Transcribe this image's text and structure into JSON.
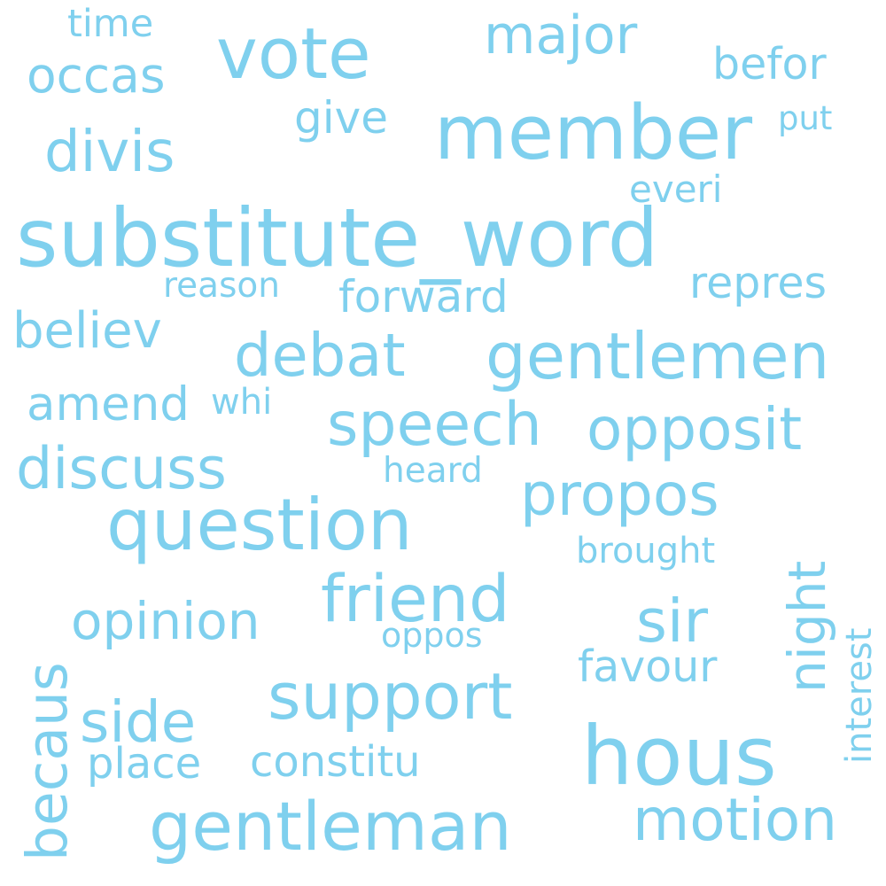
{
  "word_color": "#7fd0ee",
  "background_color": "#ffffff",
  "words": [
    {
      "id": "substitute-word",
      "text": "substitute_word"
    },
    {
      "id": "member",
      "text": "member"
    },
    {
      "id": "hous",
      "text": "hous"
    },
    {
      "id": "question",
      "text": "question"
    },
    {
      "id": "gentleman",
      "text": "gentleman"
    },
    {
      "id": "vote",
      "text": "vote"
    },
    {
      "id": "gentlemen",
      "text": "gentlemen"
    },
    {
      "id": "support",
      "text": "support"
    },
    {
      "id": "friend",
      "text": "friend"
    },
    {
      "id": "opposit",
      "text": "opposit"
    },
    {
      "id": "motion",
      "text": "motion"
    },
    {
      "id": "debat",
      "text": "debat"
    },
    {
      "id": "propos",
      "text": "propos"
    },
    {
      "id": "becaus",
      "text": "becaus"
    },
    {
      "id": "speech",
      "text": "speech"
    },
    {
      "id": "discuss",
      "text": "discuss"
    },
    {
      "id": "divis",
      "text": "divis"
    },
    {
      "id": "sir",
      "text": "sir"
    },
    {
      "id": "major",
      "text": "major"
    },
    {
      "id": "side",
      "text": "side"
    },
    {
      "id": "night",
      "text": "night"
    },
    {
      "id": "opinion",
      "text": "opinion"
    },
    {
      "id": "occas",
      "text": "occas"
    },
    {
      "id": "believ",
      "text": "believ"
    },
    {
      "id": "amend",
      "text": "amend"
    },
    {
      "id": "forward",
      "text": "forward"
    },
    {
      "id": "befor",
      "text": "befor"
    },
    {
      "id": "give",
      "text": "give"
    },
    {
      "id": "repres",
      "text": "repres"
    },
    {
      "id": "favour",
      "text": "favour"
    },
    {
      "id": "place",
      "text": "place"
    },
    {
      "id": "constitu",
      "text": "constitu"
    },
    {
      "id": "everi",
      "text": "everi"
    },
    {
      "id": "time",
      "text": "time"
    },
    {
      "id": "reason",
      "text": "reason"
    },
    {
      "id": "brought",
      "text": "brought"
    },
    {
      "id": "heard",
      "text": "heard"
    },
    {
      "id": "oppos",
      "text": "oppos"
    },
    {
      "id": "interest",
      "text": "interest"
    },
    {
      "id": "whi",
      "text": "whi"
    },
    {
      "id": "put",
      "text": "put"
    }
  ]
}
